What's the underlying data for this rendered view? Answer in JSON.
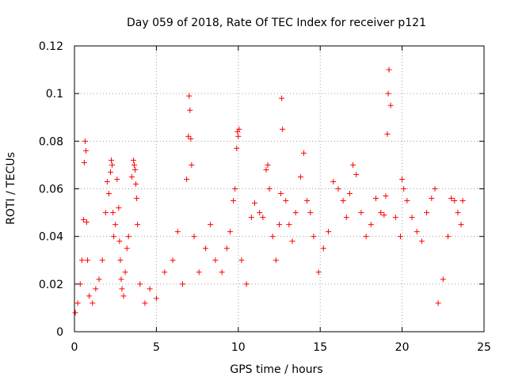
{
  "chart_data": {
    "type": "scatter",
    "title": "Day 059 of 2018, Rate Of TEC Index for receiver p121",
    "xlabel": "GPS time / hours",
    "ylabel": "ROTI / TECUs",
    "xlim": [
      0,
      25
    ],
    "ylim": [
      0,
      0.12
    ],
    "x_ticks": [
      "0",
      "5",
      "10",
      "15",
      "20",
      "25"
    ],
    "y_ticks": [
      "0",
      "0.02",
      "0.04",
      "0.06",
      "0.08",
      "0.1",
      "0.12"
    ],
    "grid": true,
    "marker": "+",
    "color": "#ff0000",
    "series": [
      {
        "x": [
          0.05,
          0.2,
          0.35,
          0.45,
          0.55,
          0.6,
          0.65,
          0.7,
          0.75,
          0.8,
          0.9,
          1.1,
          1.3,
          1.5,
          1.7,
          1.9,
          2.0,
          2.1,
          2.2,
          2.25,
          2.3,
          2.35,
          2.4,
          2.5,
          2.6,
          2.7,
          2.75,
          2.8,
          2.85,
          2.9,
          3.0,
          3.1,
          3.2,
          3.3,
          3.5,
          3.6,
          3.65,
          3.7,
          3.75,
          3.8,
          3.85,
          4.0,
          4.3,
          4.6,
          5.0,
          5.5,
          6.0,
          6.3,
          6.6,
          6.85,
          6.95,
          7.0,
          7.05,
          7.1,
          7.15,
          7.3,
          7.6,
          8.0,
          8.3,
          8.6,
          9.0,
          9.3,
          9.5,
          9.7,
          9.8,
          9.9,
          9.95,
          10.0,
          10.05,
          10.2,
          10.5,
          10.8,
          11.0,
          11.3,
          11.5,
          11.7,
          11.8,
          11.9,
          12.1,
          12.3,
          12.5,
          12.6,
          12.65,
          12.7,
          12.9,
          13.1,
          13.3,
          13.5,
          13.8,
          14.0,
          14.2,
          14.4,
          14.6,
          14.9,
          15.2,
          15.5,
          15.8,
          16.1,
          16.4,
          16.6,
          16.8,
          17.0,
          17.2,
          17.5,
          17.8,
          18.1,
          18.4,
          18.7,
          18.9,
          19.0,
          19.1,
          19.15,
          19.2,
          19.3,
          19.6,
          19.9,
          20.0,
          20.1,
          20.3,
          20.6,
          20.9,
          21.2,
          21.5,
          21.8,
          22.0,
          22.2,
          22.5,
          22.8,
          23.0,
          23.2,
          23.4,
          23.6,
          23.7
        ],
        "y": [
          0.008,
          0.012,
          0.02,
          0.03,
          0.047,
          0.071,
          0.08,
          0.076,
          0.046,
          0.03,
          0.015,
          0.012,
          0.018,
          0.022,
          0.03,
          0.05,
          0.063,
          0.058,
          0.067,
          0.072,
          0.07,
          0.05,
          0.04,
          0.045,
          0.064,
          0.052,
          0.038,
          0.03,
          0.022,
          0.018,
          0.015,
          0.025,
          0.035,
          0.04,
          0.065,
          0.072,
          0.07,
          0.068,
          0.062,
          0.056,
          0.045,
          0.02,
          0.012,
          0.018,
          0.014,
          0.025,
          0.03,
          0.042,
          0.02,
          0.064,
          0.082,
          0.099,
          0.093,
          0.081,
          0.07,
          0.04,
          0.025,
          0.035,
          0.045,
          0.03,
          0.025,
          0.035,
          0.042,
          0.055,
          0.06,
          0.077,
          0.084,
          0.082,
          0.085,
          0.03,
          0.02,
          0.048,
          0.054,
          0.05,
          0.048,
          0.068,
          0.07,
          0.06,
          0.04,
          0.03,
          0.045,
          0.058,
          0.098,
          0.085,
          0.055,
          0.045,
          0.038,
          0.05,
          0.065,
          0.075,
          0.055,
          0.05,
          0.04,
          0.025,
          0.035,
          0.042,
          0.063,
          0.06,
          0.055,
          0.048,
          0.058,
          0.07,
          0.066,
          0.05,
          0.04,
          0.045,
          0.056,
          0.05,
          0.049,
          0.057,
          0.083,
          0.1,
          0.11,
          0.095,
          0.048,
          0.04,
          0.064,
          0.06,
          0.055,
          0.048,
          0.042,
          0.038,
          0.05,
          0.056,
          0.06,
          0.012,
          0.022,
          0.04,
          0.056,
          0.055,
          0.05,
          0.045,
          0.055
        ]
      }
    ]
  }
}
